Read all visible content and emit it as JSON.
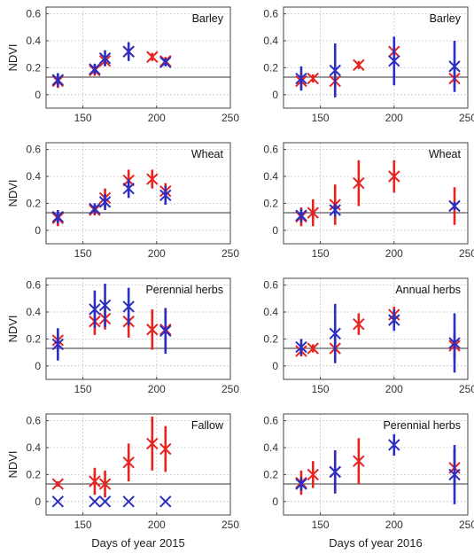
{
  "colors": {
    "red": "#e8231f",
    "blue": "#2a2fc2",
    "grid": "#c8c8c8",
    "axis": "#444444",
    "ref": "#333333"
  },
  "chart_data": [
    {
      "type": "scatter",
      "title": "Barley",
      "xlabel": "",
      "ylabel": "NDVI",
      "xlim": [
        125,
        250
      ],
      "ylim": [
        -0.1,
        0.65
      ],
      "ref_line": 0.13,
      "grid": true,
      "xticks": [
        "150",
        "200",
        "250"
      ],
      "yticks": [
        "0",
        "0.2",
        "0.4",
        "0.6"
      ],
      "series": [
        {
          "color": "red",
          "points": [
            [
              133,
              0.1,
              0.05
            ],
            [
              158,
              0.18,
              0.04
            ],
            [
              165,
              0.25,
              0.03
            ],
            [
              181,
              0.32,
              0.03
            ],
            [
              197,
              0.28,
              0.03
            ],
            [
              206,
              0.25,
              0.03
            ]
          ]
        },
        {
          "color": "blue",
          "points": [
            [
              133,
              0.11,
              0.05
            ],
            [
              158,
              0.19,
              0.04
            ],
            [
              165,
              0.27,
              0.06
            ],
            [
              181,
              0.32,
              0.07
            ],
            [
              206,
              0.24,
              0.03
            ]
          ]
        }
      ]
    },
    {
      "type": "scatter",
      "title": "Barley",
      "xlabel": "",
      "ylabel": "",
      "xlim": [
        125,
        250
      ],
      "ylim": [
        -0.1,
        0.65
      ],
      "ref_line": 0.13,
      "grid": true,
      "xticks": [
        "150",
        "200",
        "250"
      ],
      "yticks": [
        "0",
        "0.2",
        "0.4",
        "0.6"
      ],
      "series": [
        {
          "color": "red",
          "points": [
            [
              137,
              0.1,
              0.06
            ],
            [
              145,
              0.12,
              0.03
            ],
            [
              160,
              0.1,
              0.08
            ],
            [
              176,
              0.22,
              0.03
            ],
            [
              200,
              0.32,
              0.07
            ],
            [
              241,
              0.12,
              0.07
            ]
          ]
        },
        {
          "color": "blue",
          "points": [
            [
              137,
              0.12,
              0.09
            ],
            [
              160,
              0.18,
              0.2
            ],
            [
              200,
              0.25,
              0.18
            ],
            [
              241,
              0.21,
              0.19
            ]
          ]
        }
      ]
    },
    {
      "type": "scatter",
      "title": "Wheat",
      "xlabel": "",
      "ylabel": "NDVI",
      "xlim": [
        125,
        250
      ],
      "ylim": [
        -0.1,
        0.65
      ],
      "ref_line": 0.13,
      "grid": true,
      "xticks": [
        "150",
        "200",
        "250"
      ],
      "yticks": [
        "0",
        "0.2",
        "0.4",
        "0.6"
      ],
      "series": [
        {
          "color": "red",
          "points": [
            [
              133,
              0.09,
              0.06
            ],
            [
              158,
              0.15,
              0.04
            ],
            [
              165,
              0.24,
              0.07
            ],
            [
              181,
              0.37,
              0.08
            ],
            [
              197,
              0.38,
              0.07
            ],
            [
              206,
              0.29,
              0.06
            ]
          ]
        },
        {
          "color": "blue",
          "points": [
            [
              133,
              0.1,
              0.05
            ],
            [
              158,
              0.16,
              0.04
            ],
            [
              165,
              0.21,
              0.06
            ],
            [
              181,
              0.31,
              0.07
            ],
            [
              206,
              0.26,
              0.07
            ]
          ]
        }
      ]
    },
    {
      "type": "scatter",
      "title": "Wheat",
      "xlabel": "",
      "ylabel": "",
      "xlim": [
        125,
        250
      ],
      "ylim": [
        -0.1,
        0.65
      ],
      "ref_line": 0.13,
      "grid": true,
      "xticks": [
        "150",
        "200",
        "250"
      ],
      "yticks": [
        "0",
        "0.2",
        "0.4",
        "0.6"
      ],
      "series": [
        {
          "color": "red",
          "points": [
            [
              137,
              0.1,
              0.07
            ],
            [
              145,
              0.13,
              0.1
            ],
            [
              160,
              0.19,
              0.15
            ],
            [
              176,
              0.35,
              0.17
            ],
            [
              200,
              0.4,
              0.12
            ],
            [
              241,
              0.18,
              0.14
            ]
          ]
        },
        {
          "color": "blue",
          "points": [
            [
              137,
              0.11,
              0.05
            ],
            [
              160,
              0.15,
              0.05
            ],
            [
              241,
              0.18,
              0.03
            ]
          ]
        }
      ]
    },
    {
      "type": "scatter",
      "title": "Perennial herbs",
      "xlabel": "",
      "ylabel": "NDVI",
      "xlim": [
        125,
        250
      ],
      "ylim": [
        -0.1,
        0.65
      ],
      "ref_line": 0.13,
      "grid": true,
      "xticks": [
        "150",
        "200",
        "250"
      ],
      "yticks": [
        "0",
        "0.2",
        "0.4",
        "0.6"
      ],
      "series": [
        {
          "color": "red",
          "points": [
            [
              133,
              0.19,
              0.06
            ],
            [
              158,
              0.33,
              0.1
            ],
            [
              165,
              0.35,
              0.08
            ],
            [
              181,
              0.33,
              0.12
            ],
            [
              197,
              0.27,
              0.15
            ],
            [
              206,
              0.27,
              0.15
            ]
          ]
        },
        {
          "color": "blue",
          "points": [
            [
              133,
              0.16,
              0.12
            ],
            [
              158,
              0.42,
              0.14
            ],
            [
              165,
              0.45,
              0.16
            ],
            [
              181,
              0.44,
              0.14
            ],
            [
              206,
              0.26,
              0.17
            ]
          ]
        }
      ]
    },
    {
      "type": "scatter",
      "title": "Annual herbs",
      "xlabel": "",
      "ylabel": "",
      "xlim": [
        125,
        250
      ],
      "ylim": [
        -0.1,
        0.65
      ],
      "ref_line": 0.13,
      "grid": true,
      "xticks": [
        "150",
        "200",
        "250"
      ],
      "yticks": [
        "0",
        "0.2",
        "0.4",
        "0.6"
      ],
      "series": [
        {
          "color": "red",
          "points": [
            [
              137,
              0.11,
              0.04
            ],
            [
              145,
              0.13,
              0.03
            ],
            [
              160,
              0.13,
              0.08
            ],
            [
              176,
              0.31,
              0.08
            ],
            [
              200,
              0.38,
              0.06
            ],
            [
              241,
              0.15,
              0.1
            ]
          ]
        },
        {
          "color": "blue",
          "points": [
            [
              137,
              0.14,
              0.06
            ],
            [
              160,
              0.24,
              0.22
            ],
            [
              200,
              0.34,
              0.08
            ],
            [
              241,
              0.17,
              0.22
            ]
          ]
        }
      ]
    },
    {
      "type": "scatter",
      "title": "Fallow",
      "xlabel": "Days of year 2015",
      "ylabel": "NDVI",
      "xlim": [
        125,
        250
      ],
      "ylim": [
        -0.1,
        0.65
      ],
      "ref_line": 0.13,
      "grid": true,
      "xticks": [
        "150",
        "200",
        "250"
      ],
      "yticks": [
        "0",
        "0.2",
        "0.4",
        "0.6"
      ],
      "series": [
        {
          "color": "red",
          "points": [
            [
              133,
              0.13,
              0.02
            ],
            [
              158,
              0.15,
              0.1
            ],
            [
              165,
              0.13,
              0.1
            ],
            [
              181,
              0.29,
              0.14
            ],
            [
              197,
              0.43,
              0.2
            ],
            [
              206,
              0.39,
              0.17
            ]
          ]
        },
        {
          "color": "blue",
          "points": [
            [
              133,
              0.0,
              0
            ],
            [
              158,
              0.0,
              0
            ],
            [
              165,
              0.0,
              0
            ],
            [
              181,
              0.0,
              0
            ],
            [
              206,
              0.0,
              0
            ]
          ]
        }
      ]
    },
    {
      "type": "scatter",
      "title": "Perennial herbs",
      "xlabel": "Days of year 2016",
      "ylabel": "",
      "xlim": [
        125,
        250
      ],
      "ylim": [
        -0.1,
        0.65
      ],
      "ref_line": 0.13,
      "grid": true,
      "xticks": [
        "150",
        "200",
        "250"
      ],
      "yticks": [
        "0",
        "0.2",
        "0.4",
        "0.6"
      ],
      "series": [
        {
          "color": "red",
          "points": [
            [
              137,
              0.14,
              0.09
            ],
            [
              145,
              0.2,
              0.1
            ],
            [
              160,
              0.22,
              0.16
            ],
            [
              176,
              0.3,
              0.17
            ],
            [
              241,
              0.25,
              0.14
            ]
          ]
        },
        {
          "color": "blue",
          "points": [
            [
              137,
              0.13,
              0.05
            ],
            [
              160,
              0.22,
              0.16
            ],
            [
              200,
              0.42,
              0.08
            ],
            [
              241,
              0.2,
              0.22
            ]
          ]
        }
      ]
    }
  ]
}
